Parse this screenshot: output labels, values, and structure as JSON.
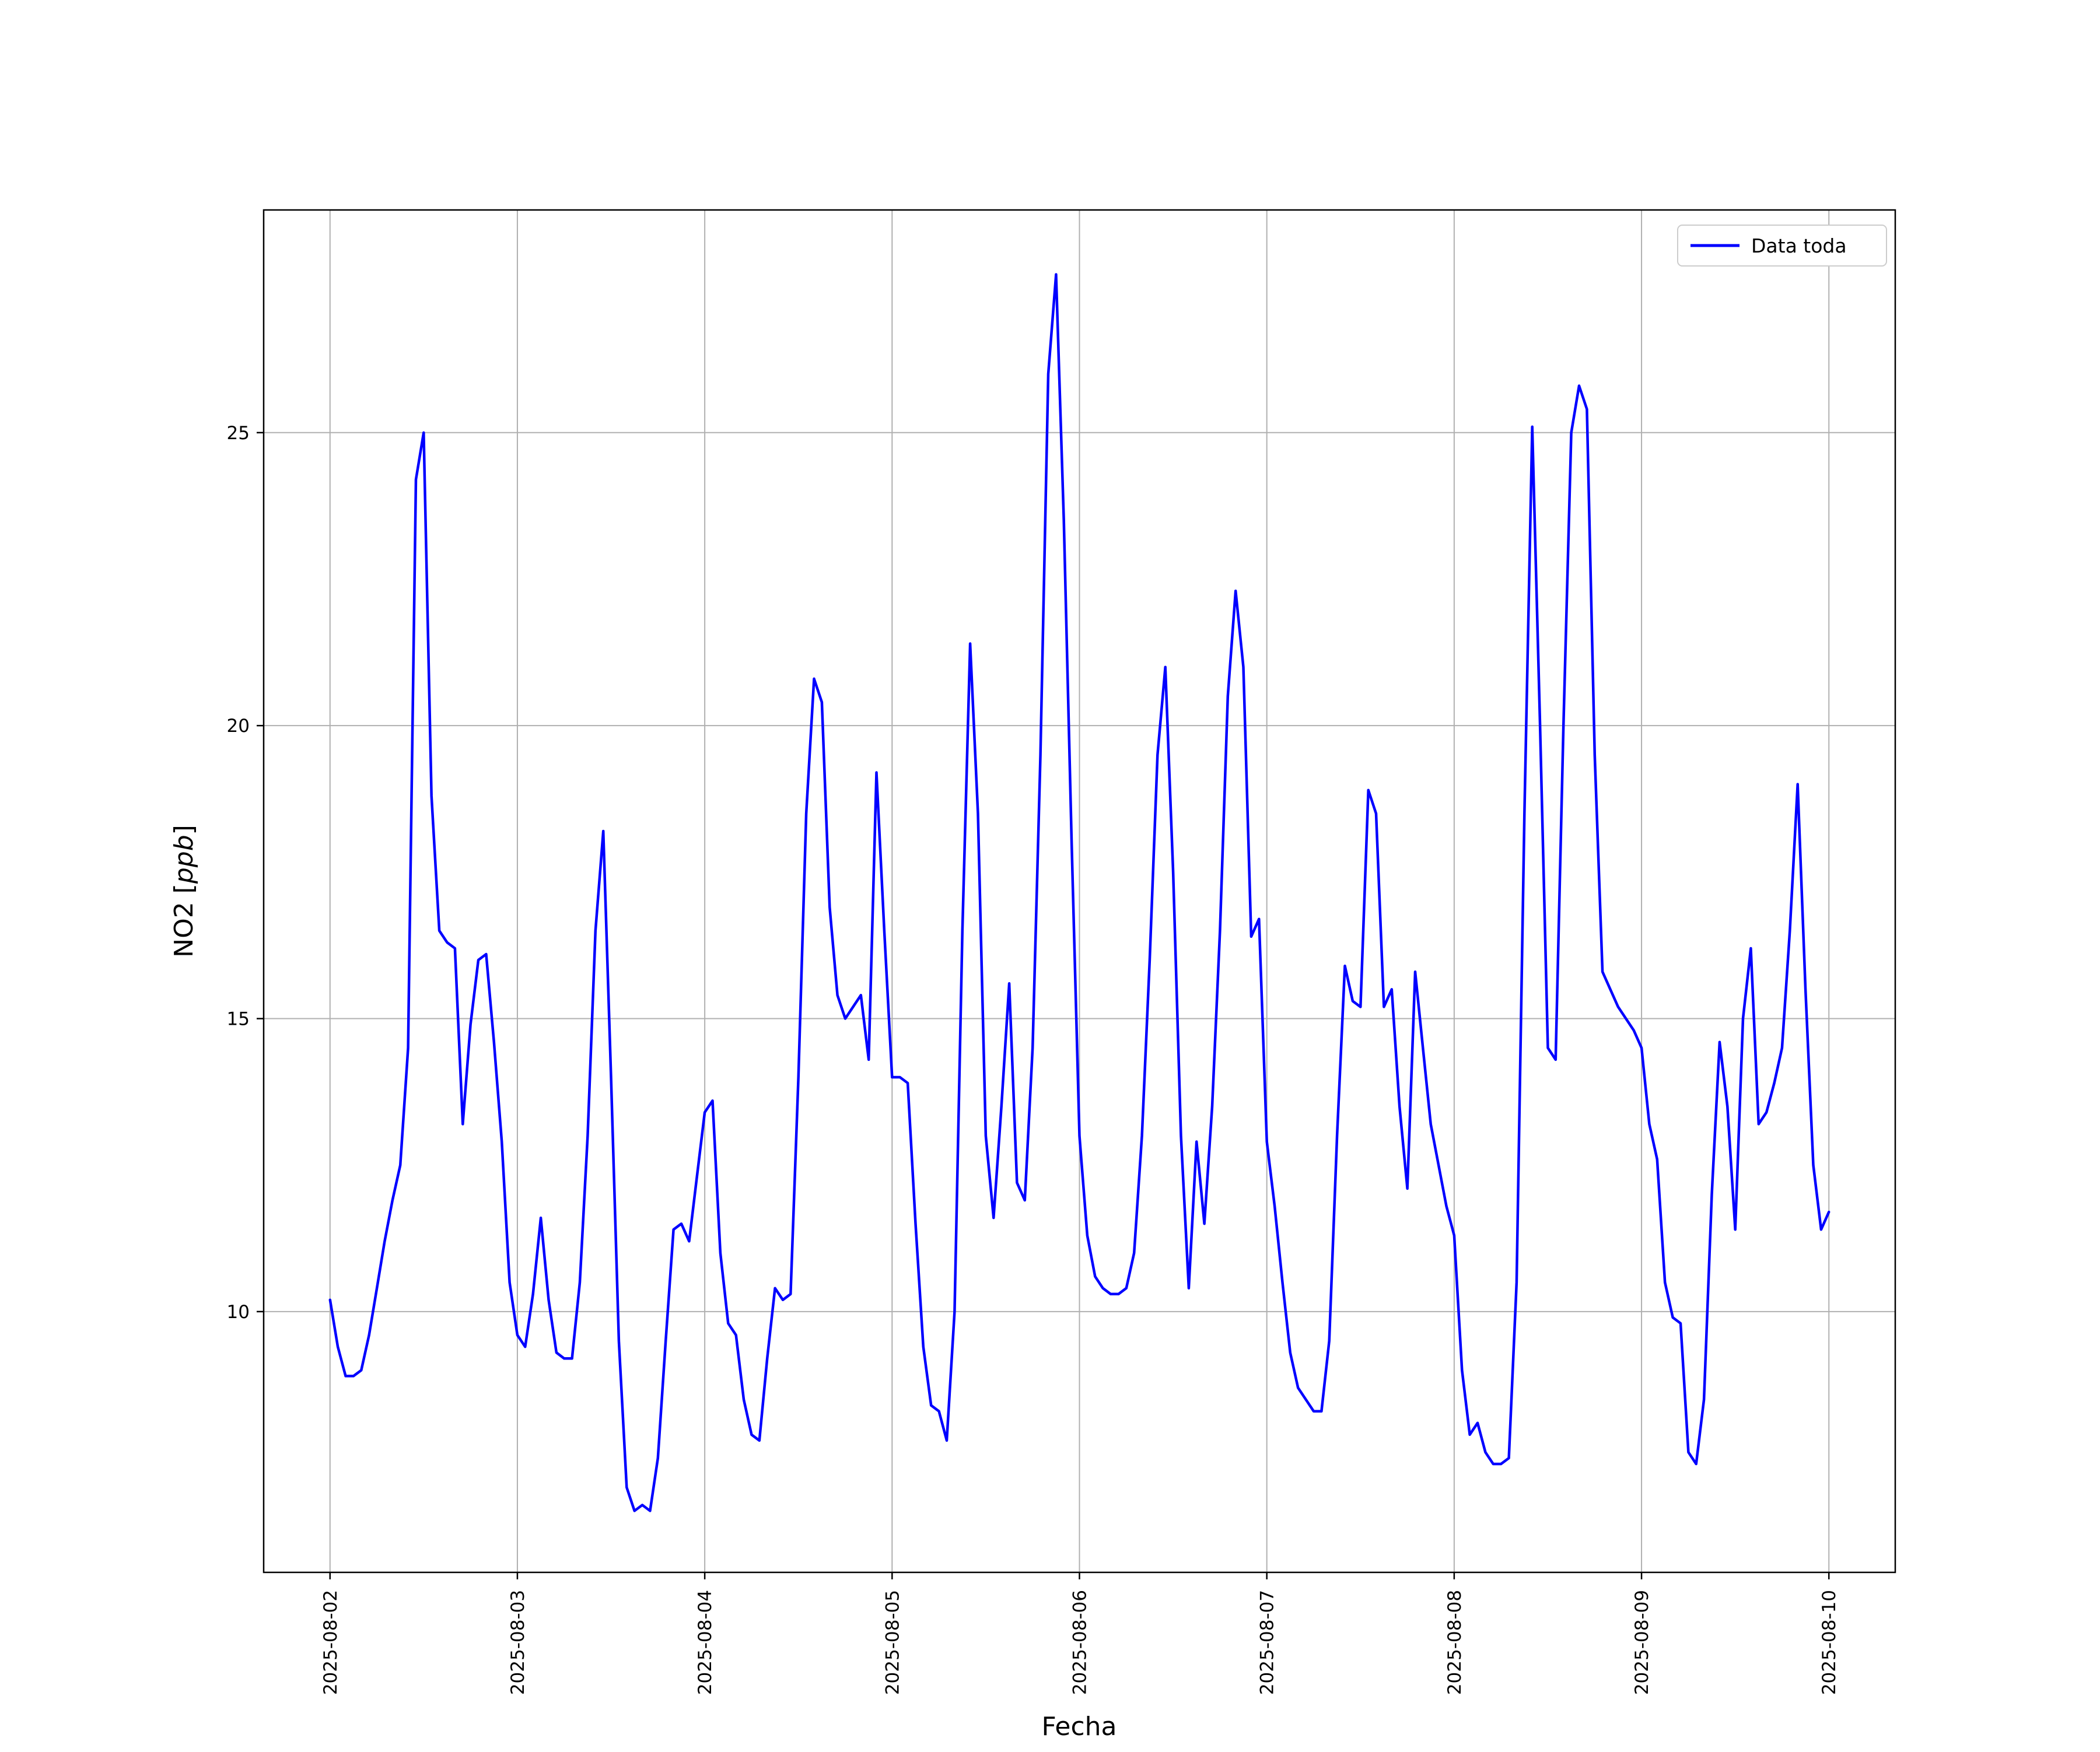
{
  "figure": {
    "background": "#ffffff"
  },
  "chart_data": {
    "type": "line",
    "title": "",
    "xlabel": "Fecha",
    "ylabel": "NO2 [ppb]",
    "ylabel_parts": {
      "prefix": "NO2 [",
      "italic": "ppb",
      "suffix": "]"
    },
    "legend": {
      "position": "upper right",
      "entries": [
        {
          "label": "Data toda",
          "color": "#0000ff"
        }
      ]
    },
    "grid": true,
    "grid_color": "#b0b0b0",
    "x_unit": "hours since 2025-08-02 00:00",
    "x_start": 0,
    "x_step": 1,
    "x_tick_hours": [
      0,
      24,
      48,
      72,
      96,
      120,
      144,
      168,
      192
    ],
    "x_tick_labels": [
      "2025-08-02",
      "2025-08-03",
      "2025-08-04",
      "2025-08-05",
      "2025-08-06",
      "2025-08-07",
      "2025-08-08",
      "2025-08-09",
      "2025-08-10"
    ],
    "y_ticks": [
      10,
      15,
      20,
      25
    ],
    "xlim": [
      -8.5,
      200.5
    ],
    "ylim": [
      5.55,
      28.8
    ],
    "series": [
      {
        "name": "Data toda",
        "color": "#0000ff",
        "values": [
          10.2,
          9.4,
          8.9,
          8.9,
          9.0,
          9.6,
          10.4,
          11.2,
          11.9,
          12.5,
          14.5,
          24.2,
          25.0,
          18.8,
          16.5,
          16.3,
          16.2,
          13.2,
          14.9,
          16.0,
          16.1,
          14.6,
          12.9,
          10.5,
          9.6,
          9.4,
          10.3,
          11.6,
          10.2,
          9.3,
          9.2,
          9.2,
          10.5,
          13.0,
          16.5,
          18.2,
          14.0,
          9.5,
          7.0,
          6.6,
          6.7,
          6.6,
          7.5,
          9.5,
          11.4,
          11.5,
          11.2,
          12.3,
          13.4,
          13.6,
          11.0,
          9.8,
          9.6,
          8.5,
          7.9,
          7.8,
          9.2,
          10.4,
          10.2,
          10.3,
          14.0,
          18.5,
          20.8,
          20.4,
          16.9,
          15.4,
          15.0,
          15.2,
          15.4,
          14.3,
          19.2,
          16.5,
          14.0,
          14.0,
          13.9,
          11.5,
          9.4,
          8.4,
          8.3,
          7.8,
          10.0,
          16.5,
          21.4,
          18.5,
          13.0,
          11.6,
          13.5,
          15.6,
          12.2,
          11.9,
          14.5,
          19.5,
          26.0,
          27.7,
          23.5,
          18.0,
          13.0,
          11.3,
          10.6,
          10.4,
          10.3,
          10.3,
          10.4,
          11.0,
          13.0,
          16.0,
          19.5,
          21.0,
          17.5,
          13.0,
          10.4,
          12.9,
          11.5,
          13.5,
          16.5,
          20.5,
          22.3,
          21.0,
          16.4,
          16.7,
          12.9,
          11.8,
          10.5,
          9.3,
          8.7,
          8.5,
          8.3,
          8.3,
          9.5,
          13.0,
          15.9,
          15.3,
          15.2,
          18.9,
          18.5,
          15.2,
          15.5,
          13.5,
          12.1,
          15.8,
          14.5,
          13.2,
          12.5,
          11.8,
          11.3,
          9.0,
          7.9,
          8.1,
          7.6,
          7.4,
          7.4,
          7.5,
          10.5,
          18.5,
          25.1,
          20.0,
          14.5,
          14.3,
          20.0,
          25.0,
          25.8,
          25.4,
          19.5,
          15.8,
          15.5,
          15.2,
          15.0,
          14.8,
          14.5,
          13.2,
          12.6,
          10.5,
          9.9,
          9.8,
          7.6,
          7.4,
          8.5,
          12.0,
          14.6,
          13.5,
          11.4,
          15.0,
          16.2,
          13.2,
          13.4,
          13.9,
          14.5,
          16.5,
          19.0,
          15.5,
          12.5,
          11.4,
          11.7
        ]
      }
    ]
  }
}
